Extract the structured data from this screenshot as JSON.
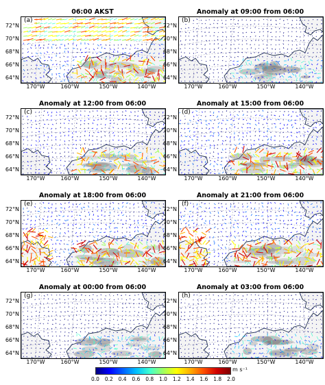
{
  "panels": [
    {
      "label": "(a)",
      "title": "06:00 AKST",
      "winds": "strong"
    },
    {
      "label": "(b)",
      "title": "Anomaly at 09:00 from 06:00",
      "winds": "weak"
    },
    {
      "label": "(c)",
      "title": "Anomaly at 12:00 from 06:00",
      "winds": "medium"
    },
    {
      "label": "(d)",
      "title": "Anomaly at 15:00 from 06:00",
      "winds": "strong"
    },
    {
      "label": "(e)",
      "title": "Anomaly at 18:00 from 06:00",
      "winds": "strong"
    },
    {
      "label": "(f)",
      "title": "Anomaly at 21:00 from 06:00",
      "winds": "strong"
    },
    {
      "label": "(g)",
      "title": "Anomaly at 00:00 from 06:00",
      "winds": "weak"
    },
    {
      "label": "(h)",
      "title": "Anomaly at 03:00 from 06:00",
      "winds": "weak"
    }
  ],
  "lat_labels": [
    "72°N",
    "70°N",
    "68°N",
    "66°N",
    "64°N"
  ],
  "lon_labels": [
    "170°W",
    "160°W",
    "150°W",
    "140°W"
  ],
  "colorbar": {
    "ticks": [
      "0.0",
      "0.2",
      "0.4",
      "0.6",
      "0.8",
      "1.0",
      "1.2",
      "1.4",
      "1.6",
      "1.8",
      "2.0"
    ],
    "unit": "m s⁻¹",
    "colors": [
      "#000080",
      "#0000ff",
      "#0060ff",
      "#00c0ff",
      "#40ffd0",
      "#a0ff60",
      "#ffff00",
      "#ffb000",
      "#ff5000",
      "#d00000",
      "#800000"
    ]
  }
}
